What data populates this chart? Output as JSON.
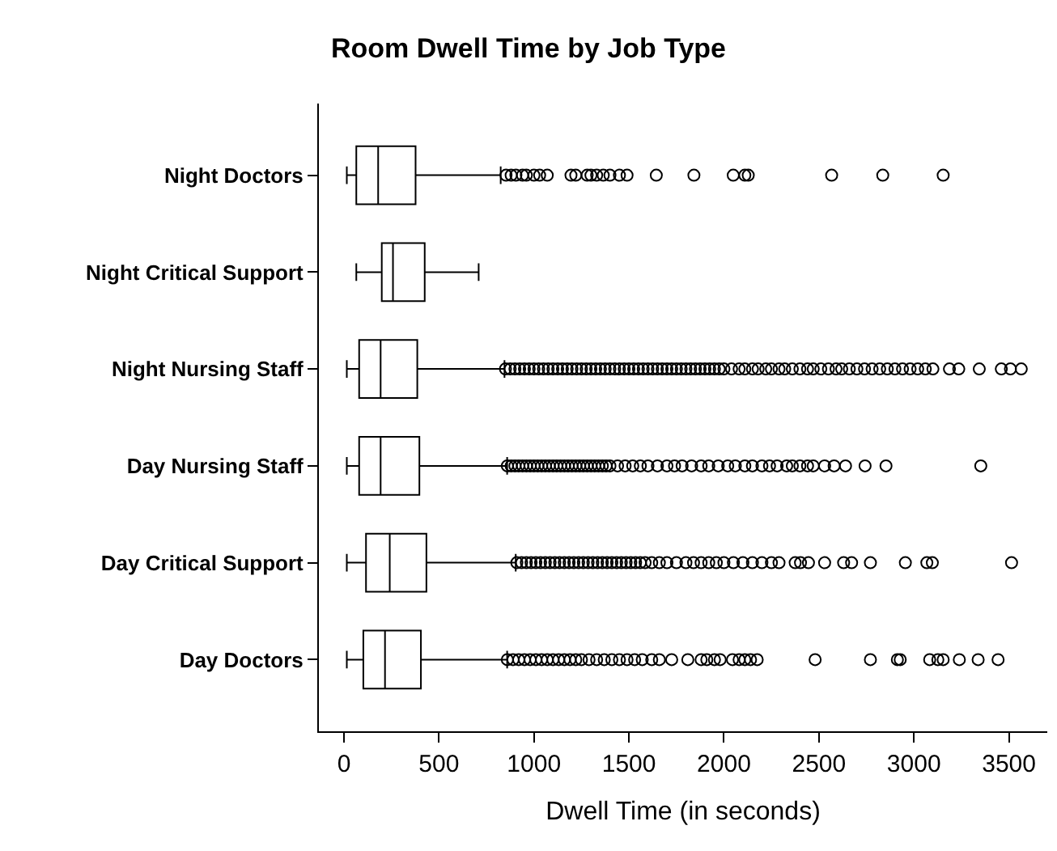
{
  "chart_data": {
    "type": "box",
    "orientation": "horizontal",
    "title": "Room Dwell Time by Job Type",
    "xlabel": "Dwell Time (in seconds)",
    "categories": [
      "Night Doctors",
      "Night Critical Support",
      "Night Nursing Staff",
      "Day Nursing Staff",
      "Day Critical Support",
      "Day Doctors"
    ],
    "color": "#000000",
    "marker": "circle",
    "xlim": [
      -132,
      3702
    ],
    "xticks": [
      0,
      500,
      1000,
      1500,
      2000,
      2500,
      3000,
      3500
    ],
    "boxes": [
      {
        "low": 15,
        "q1": 65,
        "median": 180,
        "q3": 377,
        "high": 825,
        "outliers": [
          853,
          880,
          905,
          940,
          960,
          1000,
          1030,
          1070,
          1195,
          1220,
          1280,
          1300,
          1330,
          1365,
          1400,
          1450,
          1490,
          1644,
          1842,
          2049,
          2110,
          2128,
          2567,
          2836,
          3154
        ]
      },
      {
        "low": 65,
        "q1": 199,
        "median": 258,
        "q3": 425,
        "high": 709
      },
      {
        "low": 15,
        "q1": 80,
        "median": 193,
        "q3": 386,
        "high": 845,
        "outliers": [
          850,
          875,
          900,
          925,
          950,
          975,
          1000,
          1025,
          1050,
          1075,
          1100,
          1125,
          1150,
          1175,
          1200,
          1225,
          1250,
          1275,
          1300,
          1325,
          1350,
          1375,
          1400,
          1425,
          1450,
          1475,
          1500,
          1525,
          1550,
          1575,
          1600,
          1625,
          1650,
          1675,
          1700,
          1725,
          1750,
          1775,
          1800,
          1825,
          1850,
          1875,
          1900,
          1925,
          1950,
          1975,
          2000,
          2040,
          2080,
          2110,
          2150,
          2180,
          2220,
          2250,
          2290,
          2320,
          2360,
          2400,
          2440,
          2470,
          2510,
          2550,
          2590,
          2620,
          2660,
          2700,
          2740,
          2780,
          2820,
          2860,
          2900,
          2940,
          2980,
          3020,
          3060,
          3100,
          3187,
          3236,
          3344,
          3460,
          3508,
          3565
        ]
      },
      {
        "low": 15,
        "q1": 80,
        "median": 193,
        "q3": 397,
        "high": 859,
        "outliers": [
          860,
          880,
          900,
          920,
          940,
          960,
          980,
          1000,
          1020,
          1040,
          1060,
          1080,
          1100,
          1120,
          1140,
          1160,
          1180,
          1200,
          1220,
          1240,
          1260,
          1280,
          1300,
          1320,
          1340,
          1360,
          1380,
          1400,
          1440,
          1480,
          1520,
          1560,
          1600,
          1650,
          1700,
          1740,
          1780,
          1830,
          1880,
          1920,
          1970,
          2020,
          2060,
          2110,
          2150,
          2200,
          2240,
          2280,
          2330,
          2360,
          2400,
          2440,
          2470,
          2530,
          2580,
          2640,
          2743,
          2853,
          3352
        ]
      },
      {
        "low": 15,
        "q1": 116,
        "median": 241,
        "q3": 434,
        "high": 904,
        "outliers": [
          910,
          935,
          960,
          985,
          1010,
          1035,
          1060,
          1085,
          1110,
          1135,
          1160,
          1185,
          1210,
          1235,
          1260,
          1285,
          1310,
          1335,
          1360,
          1385,
          1410,
          1435,
          1460,
          1485,
          1510,
          1535,
          1560,
          1585,
          1620,
          1660,
          1700,
          1750,
          1800,
          1840,
          1880,
          1920,
          1960,
          2000,
          2050,
          2100,
          2150,
          2200,
          2250,
          2290,
          2375,
          2403,
          2445,
          2530,
          2630,
          2672,
          2771,
          2955,
          3068,
          3097,
          3514
        ]
      },
      {
        "low": 15,
        "q1": 102,
        "median": 216,
        "q3": 405,
        "high": 859,
        "outliers": [
          860,
          890,
          920,
          950,
          980,
          1010,
          1040,
          1070,
          1100,
          1130,
          1160,
          1190,
          1220,
          1250,
          1290,
          1330,
          1370,
          1410,
          1450,
          1490,
          1530,
          1570,
          1620,
          1660,
          1725,
          1810,
          1880,
          1910,
          1950,
          1980,
          2045,
          2080,
          2110,
          2140,
          2175,
          2480,
          2771,
          2913,
          2928,
          3083,
          3126,
          3154,
          3239,
          3338,
          3443
        ]
      }
    ]
  }
}
